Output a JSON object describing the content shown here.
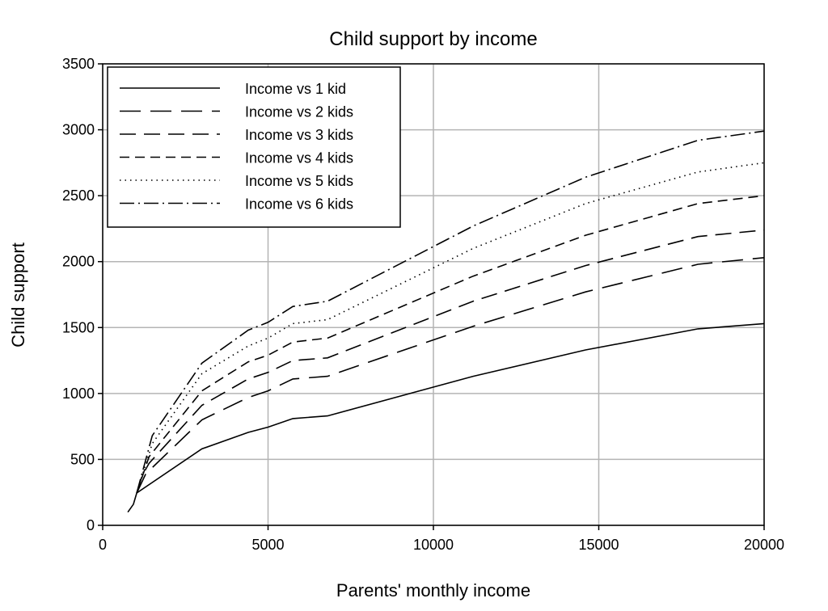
{
  "chart_data": {
    "type": "line",
    "title": "Child support by income",
    "xlabel": "Parents' monthly income",
    "ylabel": "Child support",
    "xlim": [
      0,
      20000
    ],
    "ylim": [
      0,
      3500
    ],
    "xticks": [
      0,
      5000,
      10000,
      15000,
      20000
    ],
    "yticks": [
      0,
      500,
      1000,
      1500,
      2000,
      2500,
      3000,
      3500
    ],
    "grid": true,
    "legend_position": "top-left",
    "series": [
      {
        "name": "Income vs 1 kid",
        "dash": "none",
        "points": [
          [
            760,
            100
          ],
          [
            930,
            160
          ],
          [
            1030,
            245
          ],
          [
            3000,
            580
          ],
          [
            4400,
            705
          ],
          [
            5000,
            745
          ],
          [
            5750,
            810
          ],
          [
            6800,
            830
          ],
          [
            11200,
            1130
          ],
          [
            14600,
            1330
          ],
          [
            18000,
            1490
          ],
          [
            20000,
            1530
          ]
        ]
      },
      {
        "name": "Income vs 2 kids",
        "dash": "26 12",
        "points": [
          [
            1030,
            245
          ],
          [
            1300,
            390
          ],
          [
            3000,
            800
          ],
          [
            4400,
            970
          ],
          [
            5000,
            1020
          ],
          [
            5750,
            1110
          ],
          [
            6800,
            1130
          ],
          [
            11200,
            1510
          ],
          [
            14600,
            1770
          ],
          [
            18000,
            1980
          ],
          [
            20000,
            2030
          ]
        ]
      },
      {
        "name": "Income vs 3 kids",
        "dash": "20 10",
        "points": [
          [
            1030,
            245
          ],
          [
            1200,
            380
          ],
          [
            1400,
            470
          ],
          [
            3000,
            910
          ],
          [
            4400,
            1110
          ],
          [
            5000,
            1160
          ],
          [
            5750,
            1250
          ],
          [
            6800,
            1270
          ],
          [
            11200,
            1700
          ],
          [
            14600,
            1970
          ],
          [
            18000,
            2190
          ],
          [
            20000,
            2240
          ]
        ]
      },
      {
        "name": "Income vs 4 kids",
        "dash": "12 7",
        "points": [
          [
            1030,
            245
          ],
          [
            1400,
            520
          ],
          [
            3000,
            1020
          ],
          [
            4400,
            1240
          ],
          [
            5000,
            1290
          ],
          [
            5750,
            1390
          ],
          [
            6800,
            1420
          ],
          [
            11200,
            1890
          ],
          [
            14600,
            2200
          ],
          [
            18000,
            2440
          ],
          [
            20000,
            2500
          ]
        ]
      },
      {
        "name": "Income vs 5 kids",
        "dash": "1.5 5",
        "points": [
          [
            1030,
            245
          ],
          [
            1500,
            620
          ],
          [
            3000,
            1150
          ],
          [
            4400,
            1360
          ],
          [
            5000,
            1420
          ],
          [
            5750,
            1530
          ],
          [
            6800,
            1560
          ],
          [
            11200,
            2100
          ],
          [
            14600,
            2440
          ],
          [
            18000,
            2680
          ],
          [
            20000,
            2750
          ]
        ]
      },
      {
        "name": "Income vs 6 kids",
        "dash": "18 5 2 5",
        "points": [
          [
            1030,
            245
          ],
          [
            1500,
            680
          ],
          [
            3000,
            1230
          ],
          [
            4400,
            1480
          ],
          [
            5000,
            1540
          ],
          [
            5750,
            1660
          ],
          [
            6800,
            1700
          ],
          [
            11200,
            2270
          ],
          [
            14600,
            2640
          ],
          [
            18000,
            2920
          ],
          [
            20000,
            2990
          ]
        ]
      }
    ]
  }
}
